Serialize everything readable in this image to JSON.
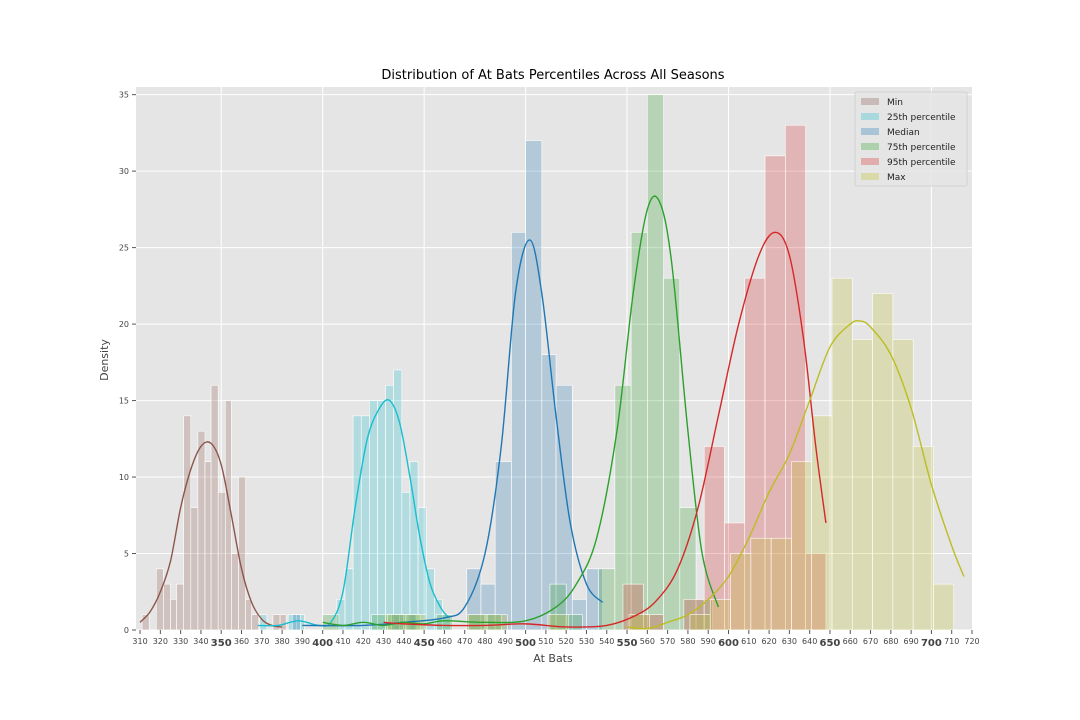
{
  "chart_data": {
    "type": "bar",
    "title": "Distribution of At Bats Percentiles Across All Seasons",
    "xlabel": "At Bats",
    "ylabel": "Density",
    "xlim": [
      308,
      720
    ],
    "ylim": [
      0,
      35.5
    ],
    "y_ticks": [
      0,
      5,
      10,
      15,
      20,
      25,
      30,
      35
    ],
    "x_ticks_minor": [
      310,
      320,
      330,
      340,
      360,
      370,
      380,
      390,
      410,
      420,
      430,
      440,
      460,
      470,
      480,
      490,
      510,
      520,
      530,
      540,
      560,
      570,
      580,
      590,
      610,
      620,
      630,
      640,
      660,
      670,
      680,
      690,
      710,
      720
    ],
    "x_ticks_major": [
      350,
      400,
      450,
      500,
      550,
      600,
      650,
      700
    ],
    "grid": true,
    "legend_position": "top-right",
    "series": [
      {
        "name": "Min",
        "color": "#8c564b",
        "bins": [
          [
            311,
            314.5,
            1
          ],
          [
            314.5,
            318,
            0
          ],
          [
            318,
            321.5,
            4
          ],
          [
            321.5,
            325,
            3
          ],
          [
            325,
            328,
            2
          ],
          [
            328,
            331.5,
            3
          ],
          [
            331.5,
            335,
            14
          ],
          [
            335,
            338.5,
            8
          ],
          [
            338.5,
            342,
            13
          ],
          [
            342,
            345,
            11
          ],
          [
            345,
            348.5,
            16
          ],
          [
            348.5,
            352,
            9
          ],
          [
            352,
            355,
            15
          ],
          [
            355,
            358.5,
            5
          ],
          [
            358.5,
            362,
            10
          ],
          [
            362,
            365,
            2
          ],
          [
            365,
            368.5,
            1
          ],
          [
            368.5,
            372,
            0
          ],
          [
            372,
            375.5,
            0
          ],
          [
            375.5,
            379,
            1
          ],
          [
            379,
            382,
            1
          ]
        ],
        "kde": [
          [
            310,
            0.5
          ],
          [
            315,
            1.2
          ],
          [
            320,
            2.5
          ],
          [
            325,
            4.5
          ],
          [
            330,
            8
          ],
          [
            335,
            10.5
          ],
          [
            340,
            12
          ],
          [
            345,
            12.2
          ],
          [
            350,
            10.8
          ],
          [
            355,
            7.5
          ],
          [
            360,
            4
          ],
          [
            365,
            1.8
          ],
          [
            370,
            0.7
          ],
          [
            375,
            0.3
          ],
          [
            380,
            0.2
          ]
        ]
      },
      {
        "name": "25th percentile",
        "color": "#17becf",
        "bins": [
          [
            369,
            372.5,
            1
          ],
          [
            372.5,
            376,
            0
          ],
          [
            376,
            379.5,
            0
          ],
          [
            379.5,
            383,
            0
          ],
          [
            383,
            387,
            1
          ],
          [
            387,
            391,
            1
          ],
          [
            391,
            395,
            0
          ],
          [
            395,
            399,
            0
          ],
          [
            399,
            403,
            0
          ],
          [
            403,
            407,
            0
          ],
          [
            407,
            411,
            2
          ],
          [
            411,
            415,
            4
          ],
          [
            415,
            419,
            14
          ],
          [
            419,
            423,
            14
          ],
          [
            423,
            427,
            15
          ],
          [
            427,
            431,
            15
          ],
          [
            431,
            435,
            16
          ],
          [
            435,
            439,
            17
          ],
          [
            439,
            443,
            9
          ],
          [
            443,
            447,
            11
          ],
          [
            447,
            451,
            8
          ],
          [
            451,
            455,
            4
          ],
          [
            455,
            459,
            2
          ],
          [
            459,
            463,
            1
          ]
        ],
        "kde": [
          [
            368,
            0.3
          ],
          [
            378,
            0.3
          ],
          [
            388,
            0.6
          ],
          [
            398,
            0.3
          ],
          [
            404,
            0.5
          ],
          [
            410,
            2.5
          ],
          [
            416,
            8
          ],
          [
            422,
            12.5
          ],
          [
            428,
            14.5
          ],
          [
            433,
            15
          ],
          [
            438,
            13.5
          ],
          [
            443,
            10
          ],
          [
            448,
            6
          ],
          [
            453,
            3
          ],
          [
            458,
            1.5
          ],
          [
            462,
            0.8
          ]
        ]
      },
      {
        "name": "Median",
        "color": "#1f77b4",
        "bins": [
          [
            385,
            389,
            1
          ],
          [
            434,
            438,
            1
          ],
          [
            438,
            442,
            1
          ],
          [
            442,
            446,
            1
          ],
          [
            471,
            478,
            4
          ],
          [
            478,
            485,
            3
          ],
          [
            485,
            493,
            11
          ],
          [
            493,
            500,
            26
          ],
          [
            500,
            508,
            32
          ],
          [
            508,
            515,
            18
          ],
          [
            515,
            523,
            16
          ],
          [
            523,
            530,
            2
          ],
          [
            530,
            538,
            4
          ]
        ],
        "kde": [
          [
            390,
            0.3
          ],
          [
            420,
            0.3
          ],
          [
            440,
            0.5
          ],
          [
            460,
            0.8
          ],
          [
            470,
            1.5
          ],
          [
            480,
            5
          ],
          [
            488,
            12
          ],
          [
            495,
            22
          ],
          [
            502,
            25.5
          ],
          [
            508,
            22
          ],
          [
            515,
            14
          ],
          [
            522,
            7
          ],
          [
            530,
            3
          ],
          [
            538,
            1.8
          ]
        ]
      },
      {
        "name": "75th percentile",
        "color": "#2ca02c",
        "bins": [
          [
            400,
            408,
            1
          ],
          [
            408,
            416,
            0
          ],
          [
            416,
            424,
            0
          ],
          [
            424,
            432,
            1
          ],
          [
            432,
            440,
            1
          ],
          [
            440,
            448,
            1
          ],
          [
            448,
            456,
            0
          ],
          [
            456,
            464,
            1
          ],
          [
            464,
            472,
            0
          ],
          [
            472,
            480,
            1
          ],
          [
            480,
            488,
            1
          ],
          [
            488,
            496,
            0
          ],
          [
            496,
            504,
            0
          ],
          [
            504,
            512,
            0
          ],
          [
            512,
            520,
            3
          ],
          [
            520,
            528,
            1
          ],
          [
            528,
            536,
            0
          ],
          [
            536,
            544,
            4
          ],
          [
            544,
            552,
            16
          ],
          [
            552,
            560,
            26
          ],
          [
            560,
            568,
            35
          ],
          [
            568,
            576,
            23
          ],
          [
            576,
            584,
            8
          ],
          [
            584,
            592,
            2
          ],
          [
            592,
            600,
            0
          ]
        ],
        "kde": [
          [
            400,
            0.5
          ],
          [
            410,
            0.3
          ],
          [
            420,
            0.5
          ],
          [
            430,
            0.3
          ],
          [
            440,
            0.5
          ],
          [
            450,
            0.4
          ],
          [
            460,
            0.6
          ],
          [
            480,
            0.5
          ],
          [
            500,
            0.6
          ],
          [
            515,
            1.5
          ],
          [
            525,
            3
          ],
          [
            535,
            6
          ],
          [
            545,
            13
          ],
          [
            553,
            22
          ],
          [
            560,
            27.5
          ],
          [
            566,
            28
          ],
          [
            572,
            24
          ],
          [
            580,
            13
          ],
          [
            587,
            5
          ],
          [
            595,
            1.5
          ]
        ]
      },
      {
        "name": "95th percentile",
        "color": "#d62728",
        "bins": [
          [
            538,
            548,
            0
          ],
          [
            548,
            558,
            3
          ],
          [
            558,
            568,
            1
          ],
          [
            568,
            578,
            0
          ],
          [
            578,
            588,
            2
          ],
          [
            588,
            598,
            12
          ],
          [
            598,
            608,
            7
          ],
          [
            608,
            618,
            23
          ],
          [
            618,
            628,
            31
          ],
          [
            628,
            638,
            33
          ],
          [
            638,
            648,
            5
          ]
        ],
        "kde": [
          [
            430,
            0.5
          ],
          [
            440,
            0.4
          ],
          [
            460,
            0.3
          ],
          [
            480,
            0.3
          ],
          [
            500,
            0.4
          ],
          [
            520,
            0.2
          ],
          [
            540,
            0.3
          ],
          [
            555,
            1
          ],
          [
            565,
            2
          ],
          [
            575,
            4
          ],
          [
            585,
            8
          ],
          [
            595,
            14
          ],
          [
            605,
            20
          ],
          [
            615,
            24.5
          ],
          [
            623,
            26
          ],
          [
            630,
            24.5
          ],
          [
            637,
            19
          ],
          [
            643,
            12
          ],
          [
            648,
            7
          ]
        ]
      },
      {
        "name": "Max",
        "color": "#bcbd22",
        "bins": [
          [
            431,
            441,
            1
          ],
          [
            441,
            451,
            1
          ],
          [
            451,
            461,
            0
          ],
          [
            461,
            471,
            0
          ],
          [
            471,
            481,
            1
          ],
          [
            481,
            491,
            1
          ],
          [
            491,
            501,
            0
          ],
          [
            501,
            511,
            0
          ],
          [
            511,
            521,
            1
          ],
          [
            521,
            531,
            0
          ],
          [
            531,
            541,
            0
          ],
          [
            541,
            551,
            0
          ],
          [
            551,
            561,
            1
          ],
          [
            561,
            571,
            0
          ],
          [
            571,
            581,
            0
          ],
          [
            581,
            591,
            1
          ],
          [
            591,
            601,
            2
          ],
          [
            601,
            611,
            5
          ],
          [
            611,
            621,
            6
          ],
          [
            621,
            631,
            6
          ],
          [
            631,
            641,
            11
          ],
          [
            641,
            651,
            14
          ],
          [
            651,
            661,
            23
          ],
          [
            661,
            671,
            19
          ],
          [
            671,
            681,
            22
          ],
          [
            681,
            691,
            19
          ],
          [
            691,
            701,
            12
          ],
          [
            701,
            711,
            3
          ]
        ],
        "kde": [
          [
            550,
            0.2
          ],
          [
            560,
            0.1
          ],
          [
            570,
            0.5
          ],
          [
            580,
            1
          ],
          [
            590,
            2
          ],
          [
            600,
            3.5
          ],
          [
            610,
            6
          ],
          [
            620,
            9
          ],
          [
            630,
            11.5
          ],
          [
            640,
            15
          ],
          [
            650,
            18.5
          ],
          [
            660,
            20
          ],
          [
            665,
            20.2
          ],
          [
            670,
            19.8
          ],
          [
            680,
            18
          ],
          [
            690,
            14.5
          ],
          [
            700,
            9.5
          ],
          [
            710,
            5.5
          ],
          [
            716,
            3.5
          ]
        ]
      }
    ]
  }
}
